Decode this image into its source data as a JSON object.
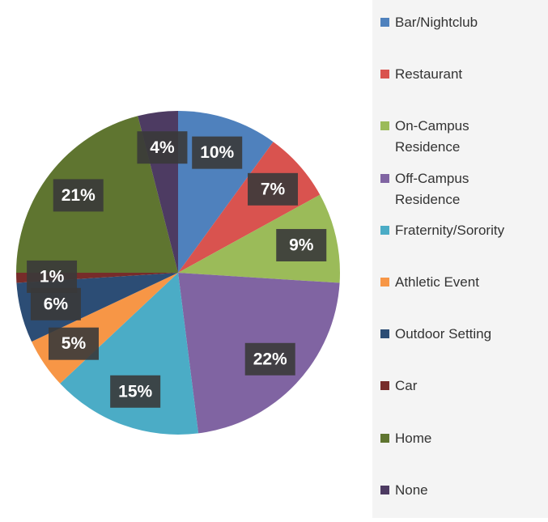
{
  "chart_data": {
    "type": "pie",
    "categories": [
      "Bar/Nightclub",
      "Restaurant",
      "On-Campus Residence",
      "Off-Campus Residence",
      "Fraternity/Sorority",
      "Athletic Event",
      "Outdoor Setting",
      "Car",
      "Home",
      "None"
    ],
    "values": [
      10,
      7,
      9,
      22,
      15,
      5,
      6,
      1,
      21,
      4
    ],
    "value_labels": [
      "10%",
      "7%",
      "9%",
      "22%",
      "15%",
      "5%",
      "6%",
      "1%",
      "21%",
      "4%"
    ],
    "colors": [
      "#4f81bd",
      "#d9534f",
      "#9bbb59",
      "#8064a2",
      "#4bacc6",
      "#f79646",
      "#2c4d75",
      "#772c2a",
      "#5f7530",
      "#4d3b62"
    ],
    "legend": "right"
  }
}
